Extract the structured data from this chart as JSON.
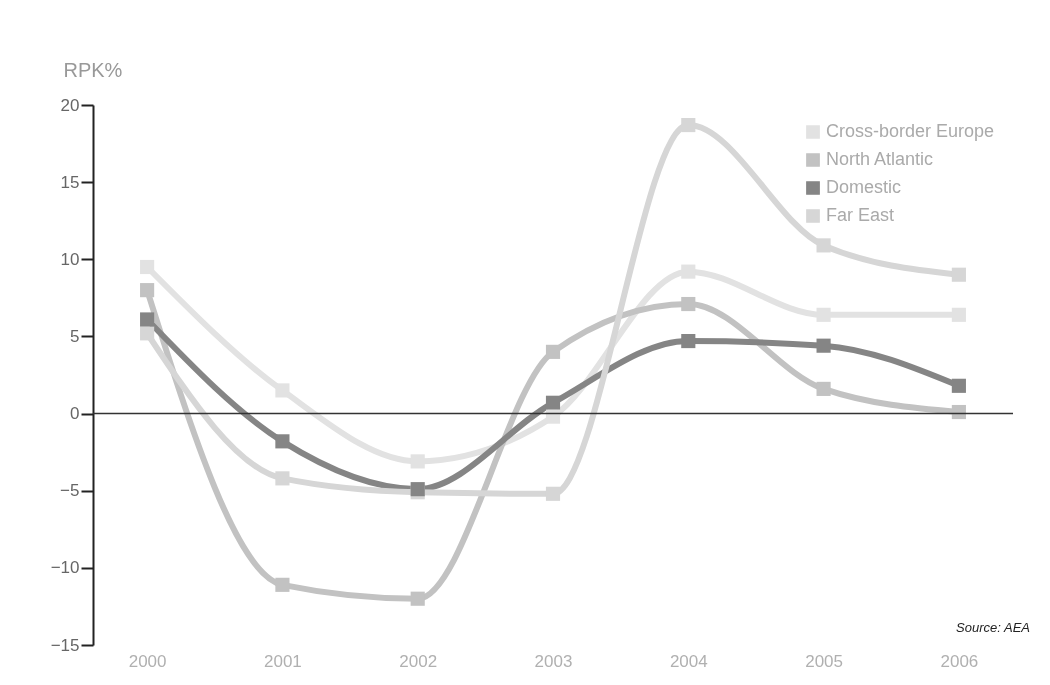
{
  "chart_data": {
    "type": "line",
    "ylabel": "RPK%",
    "categories": [
      "2000",
      "2001",
      "2002",
      "2003",
      "2004",
      "2005",
      "2006"
    ],
    "series": [
      {
        "name": "Cross-border Europe",
        "color": "#e2e2e2",
        "values": [
          9.5,
          1.5,
          -3.1,
          -0.2,
          9.2,
          6.4,
          6.4
        ]
      },
      {
        "name": "North Atlantic",
        "color": "#c2c2c2",
        "values": [
          8.0,
          -11.1,
          -12.0,
          4.0,
          7.1,
          1.6,
          0.1
        ]
      },
      {
        "name": "Domestic",
        "color": "#858585",
        "values": [
          6.1,
          -1.8,
          -4.9,
          0.7,
          4.7,
          4.4,
          1.8
        ]
      },
      {
        "name": "Far East",
        "color": "#d6d6d6",
        "values": [
          5.2,
          -4.2,
          -5.1,
          -5.2,
          18.7,
          10.9,
          9.0
        ]
      }
    ],
    "ylim": [
      -15,
      20
    ],
    "yticks": [
      -15,
      -10,
      -5,
      0,
      5,
      10,
      15,
      20
    ],
    "ref_lines": [
      {
        "axis": "y",
        "value": 0,
        "color": "#333333"
      }
    ],
    "grid": false,
    "legend": "top right",
    "marker": "square",
    "line_style": "solid",
    "annotations": [
      "Source: AEA"
    ]
  }
}
